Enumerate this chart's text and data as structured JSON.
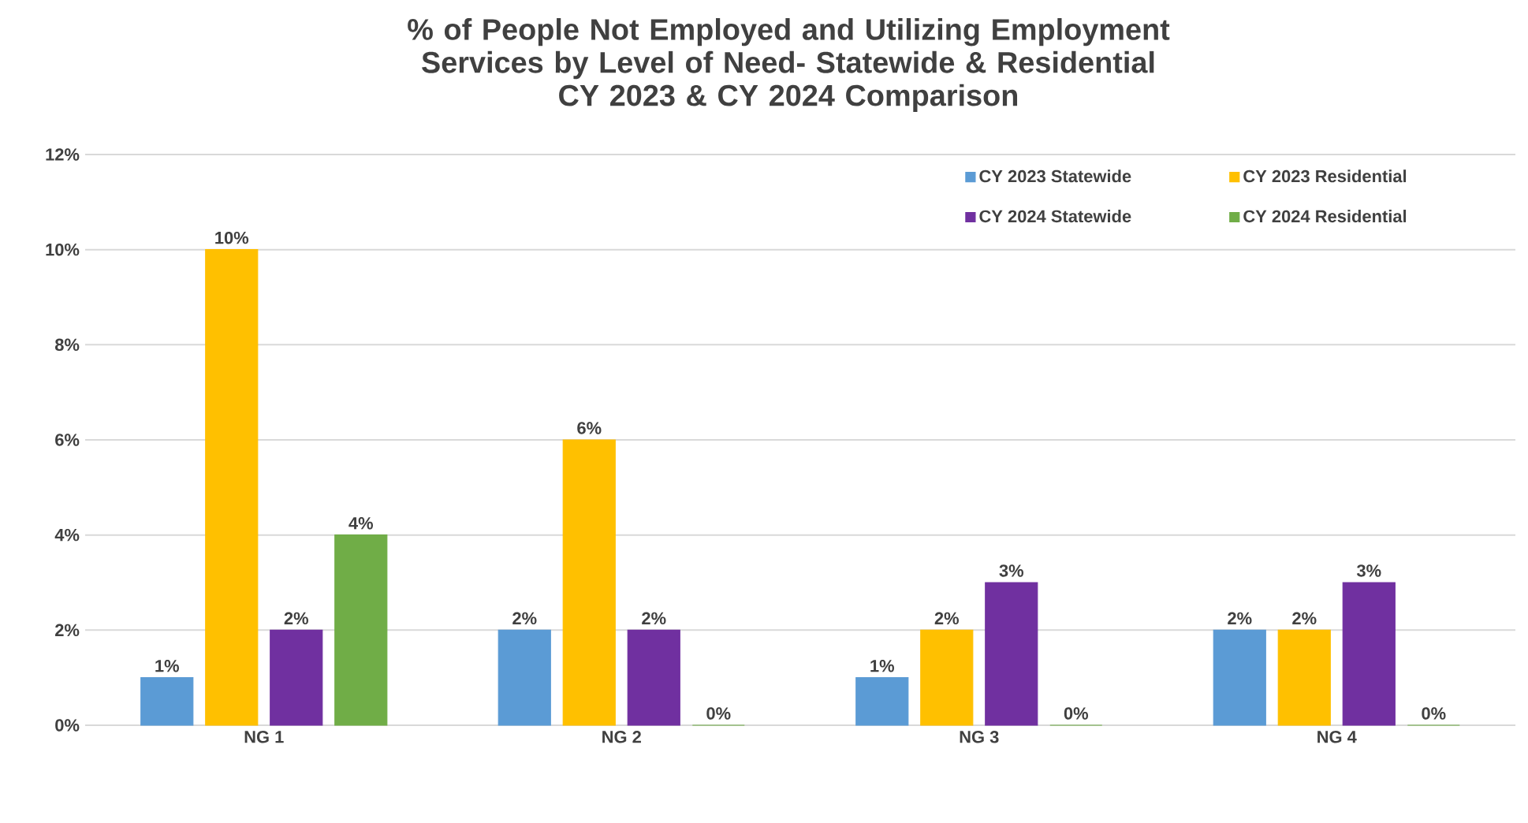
{
  "chart_data": {
    "type": "bar",
    "title": "% of People Not Employed and Utilizing Employment Services by Level of Need- Statewide & Residential",
    "subtitle": "CY 2023 & CY 2024 Comparison",
    "categories": [
      "NG 1",
      "NG 2",
      "NG 3",
      "NG 4"
    ],
    "series": [
      {
        "name": "CY 2023 Statewide",
        "color": "#5b9bd5",
        "values": [
          1,
          2,
          1,
          2
        ],
        "value_labels": [
          "1%",
          "2%",
          "1%",
          "2%"
        ]
      },
      {
        "name": "CY 2023 Residential",
        "color": "#ffc000",
        "values": [
          10,
          6,
          2,
          2
        ],
        "value_labels": [
          "10%",
          "6%",
          "2%",
          "2%"
        ]
      },
      {
        "name": "CY 2024 Statewide",
        "color": "#7030a0",
        "values": [
          2,
          2,
          3,
          3
        ],
        "value_labels": [
          "2%",
          "2%",
          "3%",
          "3%"
        ]
      },
      {
        "name": "CY 2024 Residential",
        "color": "#70ad47",
        "values": [
          4,
          0,
          0,
          0
        ],
        "value_labels": [
          "4%",
          "0%",
          "0%",
          "0%"
        ]
      }
    ],
    "ylim": [
      0,
      12
    ],
    "yticks": [
      {
        "value": 0,
        "label": "0%"
      },
      {
        "value": 2,
        "label": "2%"
      },
      {
        "value": 4,
        "label": "4%"
      },
      {
        "value": 6,
        "label": "6%"
      },
      {
        "value": 8,
        "label": "8%"
      },
      {
        "value": 10,
        "label": "10%"
      },
      {
        "value": 12,
        "label": "12%"
      }
    ],
    "grid": "y",
    "legend": "top right"
  }
}
